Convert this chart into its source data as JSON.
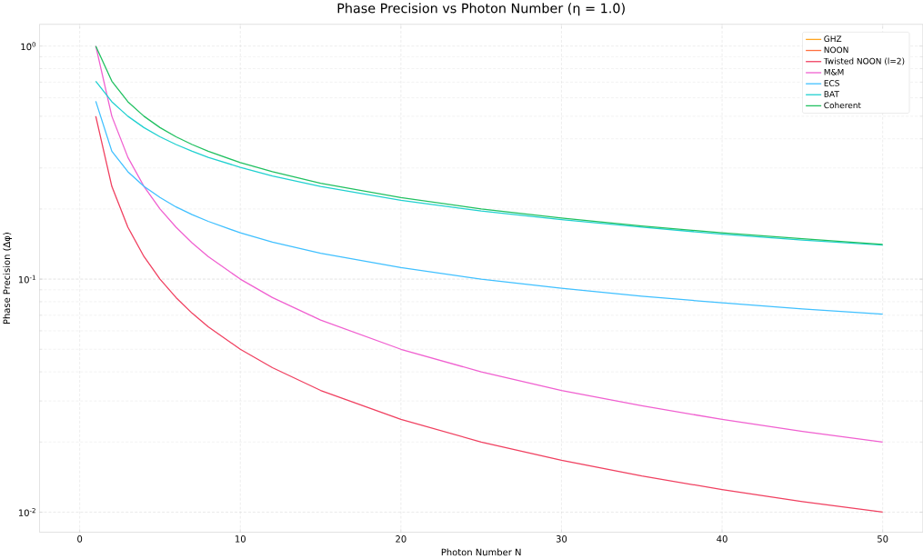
{
  "chart_data": {
    "type": "line",
    "title": "Phase Precision vs Photon Number (η = 1.0)",
    "xlabel": "Photon Number N",
    "ylabel": "Phase Precision (Δφ)",
    "x": [
      1,
      2,
      3,
      4,
      5,
      6,
      7,
      8,
      10,
      12,
      15,
      20,
      25,
      30,
      35,
      40,
      45,
      50
    ],
    "series": [
      {
        "name": "GHZ",
        "color": "#ffa520",
        "values": [
          null,
          null,
          null,
          null,
          null,
          null,
          null,
          null,
          null,
          null,
          null,
          null,
          null,
          null,
          null,
          null,
          null,
          null
        ]
      },
      {
        "name": "NOON",
        "color": "#ff7040",
        "values": [
          null,
          null,
          null,
          null,
          null,
          null,
          null,
          null,
          null,
          null,
          null,
          null,
          null,
          null,
          null,
          null,
          null,
          null
        ]
      },
      {
        "name": "Twisted NOON (l=2)",
        "color": "#f04060",
        "values": [
          0.5,
          0.25,
          0.167,
          0.125,
          0.1,
          0.0833,
          0.0714,
          0.0625,
          0.05,
          0.0417,
          0.0333,
          0.025,
          0.02,
          0.0167,
          0.0143,
          0.0125,
          0.0111,
          0.01
        ]
      },
      {
        "name": "M&M",
        "color": "#f060d0",
        "values": [
          1,
          0.5,
          0.333,
          0.25,
          0.2,
          0.167,
          0.143,
          0.125,
          0.1,
          0.0833,
          0.0667,
          0.05,
          0.04,
          0.0333,
          0.0286,
          0.025,
          0.0222,
          0.02
        ]
      },
      {
        "name": "ECS",
        "color": "#40c0ff",
        "values": [
          0.58,
          0.354,
          0.289,
          0.25,
          0.224,
          0.204,
          0.189,
          0.177,
          0.158,
          0.144,
          0.129,
          0.112,
          0.1,
          0.0913,
          0.0845,
          0.0791,
          0.0745,
          0.0707
        ]
      },
      {
        "name": "BAT",
        "color": "#20d0d0",
        "values": [
          0.707,
          0.577,
          0.5,
          0.447,
          0.408,
          0.378,
          0.354,
          0.333,
          0.302,
          0.277,
          0.25,
          0.218,
          0.196,
          0.18,
          0.167,
          0.156,
          0.147,
          0.14
        ]
      },
      {
        "name": "Coherent",
        "color": "#20c060",
        "values": [
          1,
          0.707,
          0.577,
          0.5,
          0.447,
          0.408,
          0.378,
          0.354,
          0.316,
          0.289,
          0.258,
          0.224,
          0.2,
          0.183,
          0.169,
          0.158,
          0.149,
          0.141
        ]
      }
    ],
    "xlim": [
      -2.5,
      52.5
    ],
    "xticks": [
      0,
      10,
      20,
      30,
      40,
      50
    ],
    "ylim": [
      0.0082,
      1.24
    ],
    "yticks": [
      {
        "value": 0.01,
        "label": "10$^{-2}$"
      },
      {
        "value": 0.1,
        "label": "10$^{-1}$"
      },
      {
        "value": 1,
        "label": "10$^{0}$"
      }
    ],
    "log": true,
    "grid": true,
    "legend": "top right"
  }
}
